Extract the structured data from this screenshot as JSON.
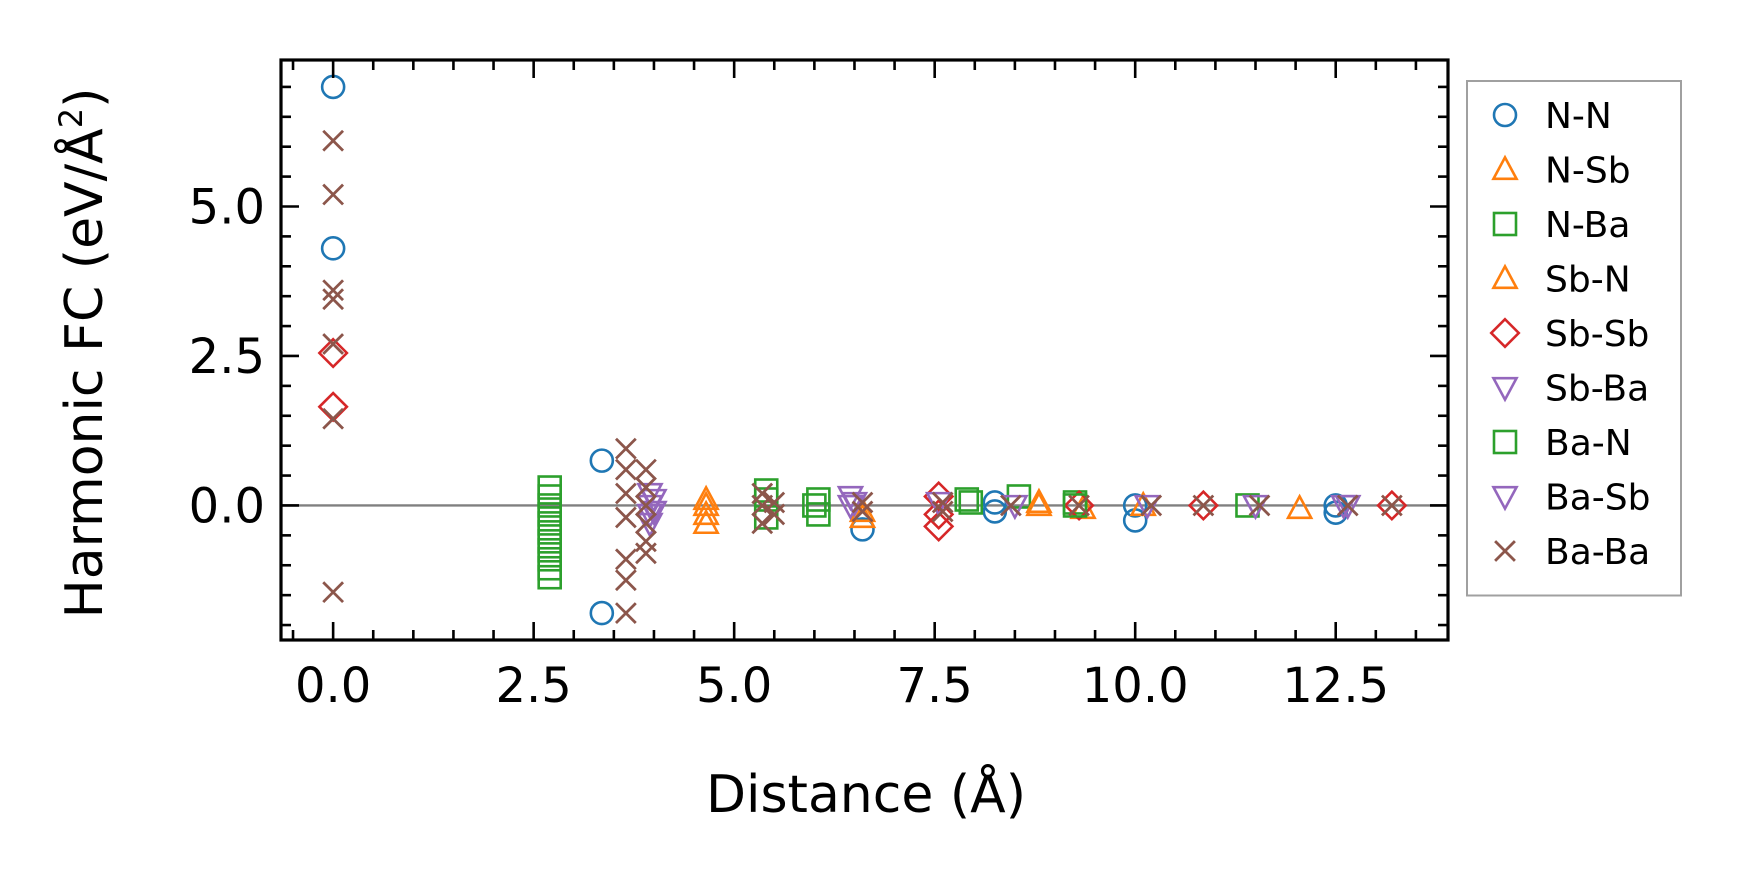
{
  "chart_data": {
    "type": "scatter",
    "title": "",
    "xlabel": "Distance (Å)",
    "ylabel_main": "Harmonic FC (eV/Å",
    "ylabel_sup": "2",
    "ylabel_close": ")",
    "xlim": [
      -0.65,
      13.9
    ],
    "ylim": [
      -2.25,
      7.45
    ],
    "xticks": [
      0.0,
      2.5,
      5.0,
      7.5,
      10.0,
      12.5
    ],
    "xtick_labels": [
      "0.0",
      "2.5",
      "5.0",
      "7.5",
      "10.0",
      "12.5"
    ],
    "yticks": [
      0.0,
      2.5,
      5.0
    ],
    "ytick_labels": [
      "0.0",
      "2.5",
      "5.0"
    ],
    "zero_line": true,
    "legend_position": "outside-right",
    "series": [
      {
        "name": "N-N",
        "marker": "circle",
        "color": "#1f77b4",
        "points": [
          [
            0,
            7.0
          ],
          [
            0,
            4.3
          ],
          [
            3.35,
            0.75
          ],
          [
            3.35,
            -1.8
          ],
          [
            6.6,
            -0.4
          ],
          [
            8.25,
            0.05
          ],
          [
            8.25,
            -0.1
          ],
          [
            10.0,
            0.0
          ],
          [
            10.0,
            -0.25
          ],
          [
            12.5,
            0.0
          ],
          [
            12.5,
            -0.12
          ]
        ]
      },
      {
        "name": "N-Sb",
        "marker": "triangle-up",
        "color": "#ff7f0e",
        "points": [
          [
            4.65,
            0.1
          ],
          [
            4.65,
            -0.15
          ],
          [
            4.65,
            -0.3
          ],
          [
            6.6,
            -0.2
          ],
          [
            8.8,
            0.0
          ],
          [
            9.35,
            -0.05
          ],
          [
            10.1,
            0.0
          ],
          [
            12.05,
            -0.05
          ]
        ]
      },
      {
        "name": "N-Ba",
        "marker": "square",
        "color": "#2ca02c",
        "points": [
          [
            2.7,
            0.3
          ],
          [
            2.7,
            0.15
          ],
          [
            2.7,
            0.0
          ],
          [
            2.7,
            -0.15
          ],
          [
            2.7,
            -0.3
          ],
          [
            2.7,
            -0.45
          ],
          [
            2.7,
            -0.6
          ],
          [
            2.7,
            -0.75
          ],
          [
            2.7,
            -0.9
          ],
          [
            2.7,
            -1.05
          ],
          [
            2.7,
            -1.2
          ],
          [
            5.4,
            0.25
          ],
          [
            5.4,
            -0.2
          ],
          [
            6.05,
            0.1
          ],
          [
            6.05,
            -0.15
          ],
          [
            7.9,
            0.1
          ],
          [
            8.55,
            0.15
          ],
          [
            9.25,
            0.05
          ],
          [
            11.4,
            0.0
          ]
        ]
      },
      {
        "name": "Sb-N",
        "marker": "triangle-up",
        "color": "#ff7f0e",
        "points": [
          [
            4.65,
            0.0
          ],
          [
            6.6,
            -0.1
          ],
          [
            8.8,
            0.05
          ]
        ]
      },
      {
        "name": "Sb-Sb",
        "marker": "diamond",
        "color": "#d62728",
        "points": [
          [
            0,
            2.55
          ],
          [
            0,
            1.65
          ],
          [
            7.55,
            0.15
          ],
          [
            7.55,
            -0.15
          ],
          [
            7.55,
            -0.35
          ],
          [
            9.3,
            0.0
          ],
          [
            10.85,
            0.0
          ],
          [
            13.2,
            0.0
          ]
        ]
      },
      {
        "name": "Sb-Ba",
        "marker": "triangle-down",
        "color": "#9467bd",
        "points": [
          [
            3.95,
            0.2
          ],
          [
            3.95,
            0.0
          ],
          [
            3.95,
            -0.15
          ],
          [
            3.95,
            -0.3
          ],
          [
            6.45,
            0.15
          ],
          [
            6.45,
            0.0
          ],
          [
            7.55,
            0.05
          ],
          [
            8.5,
            0.0
          ],
          [
            10.15,
            0.0
          ],
          [
            12.6,
            0.0
          ]
        ]
      },
      {
        "name": "Ba-N",
        "marker": "square",
        "color": "#2ca02c",
        "points": [
          [
            5.4,
            0.1
          ],
          [
            6.0,
            0.0
          ],
          [
            7.95,
            0.05
          ],
          [
            9.25,
            0.0
          ]
        ]
      },
      {
        "name": "Ba-Sb",
        "marker": "triangle-down",
        "color": "#9467bd",
        "points": [
          [
            4.0,
            0.1
          ],
          [
            4.0,
            -0.1
          ],
          [
            6.5,
            0.05
          ],
          [
            11.5,
            0.0
          ],
          [
            12.65,
            0.0
          ]
        ]
      },
      {
        "name": "Ba-Ba",
        "marker": "x",
        "color": "#8c564b",
        "points": [
          [
            0,
            6.1
          ],
          [
            0,
            5.2
          ],
          [
            0,
            3.6
          ],
          [
            0,
            3.45
          ],
          [
            0,
            2.7
          ],
          [
            0,
            1.45
          ],
          [
            0,
            -1.45
          ],
          [
            3.65,
            0.95
          ],
          [
            3.65,
            0.6
          ],
          [
            3.65,
            0.2
          ],
          [
            3.65,
            -0.2
          ],
          [
            3.65,
            -0.9
          ],
          [
            3.65,
            -1.25
          ],
          [
            3.65,
            -1.8
          ],
          [
            3.9,
            0.6
          ],
          [
            3.9,
            0.3
          ],
          [
            3.9,
            0.0
          ],
          [
            3.9,
            -0.3
          ],
          [
            3.9,
            -0.6
          ],
          [
            3.9,
            -0.8
          ],
          [
            5.35,
            0.2
          ],
          [
            5.35,
            0.0
          ],
          [
            5.35,
            -0.3
          ],
          [
            5.5,
            0.05
          ],
          [
            5.5,
            -0.15
          ],
          [
            6.6,
            0.05
          ],
          [
            6.6,
            -0.1
          ],
          [
            7.6,
            0.05
          ],
          [
            7.6,
            -0.1
          ],
          [
            8.45,
            0.0
          ],
          [
            9.3,
            0.0
          ],
          [
            10.2,
            0.0
          ],
          [
            10.85,
            0.0
          ],
          [
            11.55,
            0.0
          ],
          [
            12.65,
            0.0
          ],
          [
            13.2,
            0.0
          ]
        ]
      }
    ]
  }
}
